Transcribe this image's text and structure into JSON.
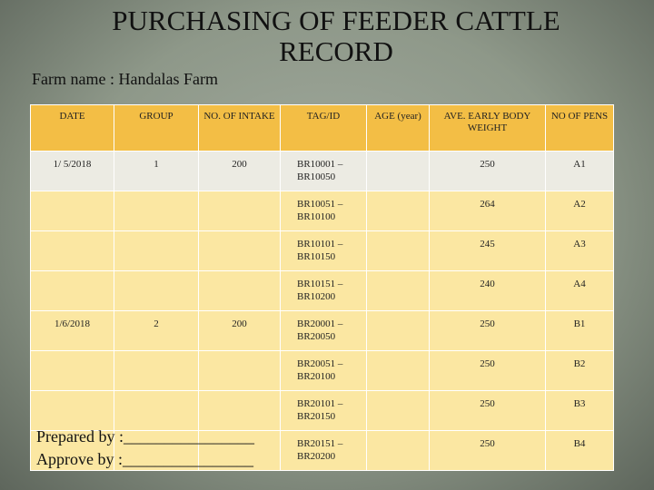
{
  "header": {
    "title": "PURCHASING OF  FEEDER CATTLE RECORD",
    "farm_name": "Farm name : Handalas Farm"
  },
  "table": {
    "columns": [
      "DATE",
      "GROUP",
      "NO. OF INTAKE",
      "TAG/ID",
      "AGE (year)",
      "AVE. EARLY BODY WEIGHT",
      "NO OF PENS"
    ],
    "rows": [
      [
        "1/ 5/2018",
        1,
        200,
        "BR10001 – BR10050",
        null,
        250,
        "A1"
      ],
      [
        null,
        null,
        null,
        "BR10051 – BR10100",
        null,
        264,
        "A2"
      ],
      [
        null,
        null,
        null,
        "BR10101 – BR10150",
        null,
        245,
        "A3"
      ],
      [
        null,
        null,
        null,
        "BR10151 – BR10200",
        null,
        240,
        "A4"
      ],
      [
        "1/6/2018",
        2,
        200,
        "BR20001 – BR20050",
        null,
        250,
        "B1"
      ],
      [
        null,
        null,
        null,
        "BR20051 – BR20100",
        null,
        250,
        "B2"
      ],
      [
        null,
        null,
        null,
        "BR20101 – BR20150",
        null,
        250,
        "B3"
      ],
      [
        null,
        null,
        null,
        "BR20151 – BR20200",
        null,
        250,
        "B4"
      ]
    ]
  },
  "footer": {
    "prepared_by": "Prepared by :________________",
    "approve_by": "Approve  by :________________"
  }
}
